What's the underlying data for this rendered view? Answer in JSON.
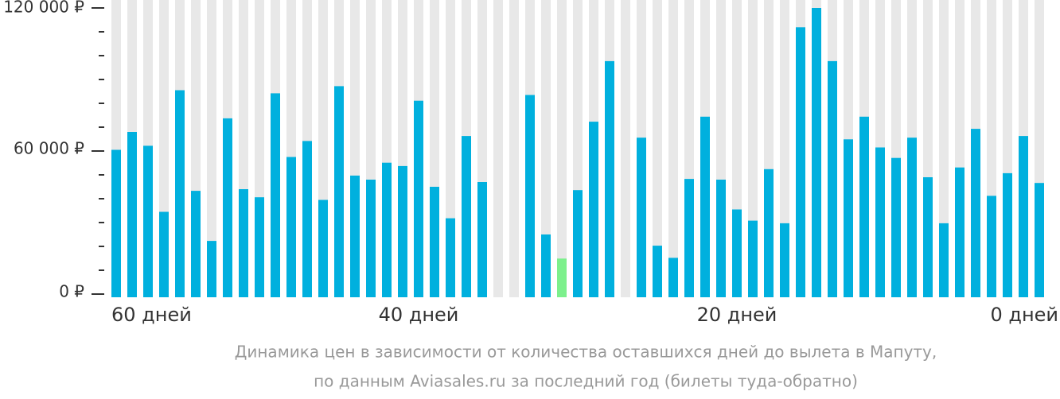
{
  "chart_data": {
    "type": "bar",
    "caption": [
      "Динамика цен в зависимости от количества оставшихся дней до вылета в Мапуту,",
      "по данным Aviasales.ru за последний год (билеты туда-обратно)"
    ],
    "categories": [
      "60 дней",
      null,
      null,
      null,
      null,
      null,
      null,
      null,
      null,
      null,
      null,
      null,
      null,
      null,
      null,
      null,
      null,
      null,
      null,
      "40 дней",
      null,
      null,
      null,
      null,
      null,
      null,
      null,
      null,
      null,
      null,
      null,
      null,
      null,
      null,
      null,
      null,
      null,
      null,
      null,
      "20 дней",
      null,
      null,
      null,
      null,
      null,
      null,
      null,
      null,
      null,
      null,
      null,
      null,
      null,
      null,
      null,
      null,
      null,
      null,
      "0 дней"
    ],
    "values": [
      60500,
      68000,
      62200,
      34500,
      85500,
      43300,
      22300,
      73700,
      44000,
      40600,
      84200,
      57500,
      64200,
      39500,
      87200,
      49700,
      48000,
      55100,
      53700,
      81100,
      45000,
      31800,
      66300,
      47000,
      null,
      null,
      83500,
      25000,
      14900,
      43600,
      72300,
      97700,
      null,
      65600,
      20300,
      15200,
      48300,
      74400,
      48000,
      35500,
      30800,
      52400,
      29700,
      111900,
      120000,
      97700,
      64900,
      74400,
      61500,
      57100,
      65600,
      49000,
      29700,
      53100,
      69300,
      41200,
      50700,
      66300,
      46600
    ],
    "color": "#00b0de",
    "highlight": {
      "index": 28,
      "color": "#7cf08c"
    },
    "stripe_color": "#e8e8e8",
    "ylim": [
      0,
      120000
    ],
    "yticks": [
      {
        "value": 0,
        "label": "0 ₽"
      },
      {
        "value": 60000,
        "label": "60 000 ₽"
      },
      {
        "value": 120000,
        "label": "120 000 ₽"
      }
    ],
    "minor_yticks": [
      10000,
      20000,
      30000,
      40000,
      50000,
      70000,
      80000,
      90000,
      100000,
      110000
    ]
  }
}
